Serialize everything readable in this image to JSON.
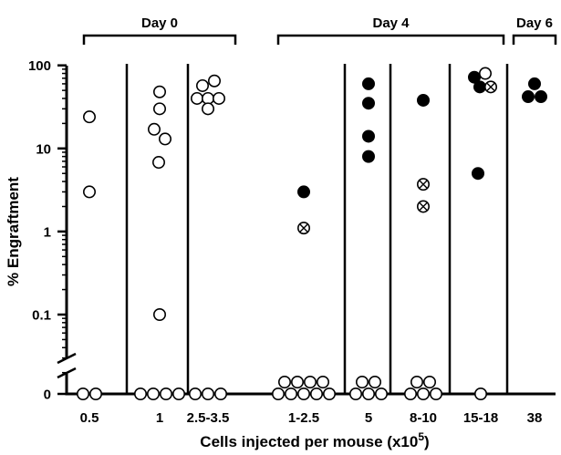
{
  "chart_data": {
    "type": "scatter",
    "title": "",
    "xlabel": "Cells injected per mouse (x10",
    "xlabel_sup": "5",
    "xlabel_end": ")",
    "ylabel": "% Engraftment",
    "yscale": "log",
    "ylim": [
      0.01,
      100
    ],
    "yticks": [
      {
        "value": 100,
        "label": "100"
      },
      {
        "value": 10,
        "label": "10"
      },
      {
        "value": 1,
        "label": "1"
      },
      {
        "value": 0.1,
        "label": "0.1"
      },
      {
        "value": 0,
        "label": "0"
      }
    ],
    "axis_break": true,
    "marker_legend": {
      "open": "open circle",
      "filled": "filled circle",
      "crossed": "crossed circle"
    },
    "groups": [
      {
        "label": "Day 0",
        "categories": [
          "0.5",
          "1",
          "2.5-3.5"
        ]
      },
      {
        "label": "Day 4",
        "categories": [
          "1-2.5",
          "5",
          "8-10",
          "15-18"
        ]
      },
      {
        "label": "Day 6",
        "categories": [
          "38"
        ]
      }
    ],
    "categories": [
      {
        "label": "0.5",
        "points": [
          {
            "y": 24,
            "marker": "open",
            "dx": 0
          },
          {
            "y": 3,
            "marker": "open",
            "dx": 0
          },
          {
            "y": 0,
            "marker": "open",
            "dx": -7
          },
          {
            "y": 0,
            "marker": "open",
            "dx": 7
          }
        ]
      },
      {
        "label": "1",
        "points": [
          {
            "y": 48,
            "marker": "open",
            "dx": 0
          },
          {
            "y": 30,
            "marker": "open",
            "dx": 0
          },
          {
            "y": 17,
            "marker": "open",
            "dx": -6
          },
          {
            "y": 13,
            "marker": "open",
            "dx": 6
          },
          {
            "y": 6.8,
            "marker": "open",
            "dx": -1
          },
          {
            "y": 0.1,
            "marker": "open",
            "dx": 0
          },
          {
            "y": 0,
            "marker": "open",
            "dx": -21
          },
          {
            "y": 0,
            "marker": "open",
            "dx": -7
          },
          {
            "y": 0,
            "marker": "open",
            "dx": 7
          },
          {
            "y": 0,
            "marker": "open",
            "dx": 21
          }
        ]
      },
      {
        "label": "2.5-3.5",
        "points": [
          {
            "y": 65,
            "marker": "open",
            "dx": 7
          },
          {
            "y": 57,
            "marker": "open",
            "dx": -6
          },
          {
            "y": 40,
            "marker": "open",
            "dx": -12
          },
          {
            "y": 40,
            "marker": "open",
            "dx": 0
          },
          {
            "y": 40,
            "marker": "open",
            "dx": 12
          },
          {
            "y": 30,
            "marker": "open",
            "dx": 0
          },
          {
            "y": 0,
            "marker": "open",
            "dx": -14
          },
          {
            "y": 0,
            "marker": "open",
            "dx": 0
          },
          {
            "y": 0,
            "marker": "open",
            "dx": 14
          }
        ]
      },
      {
        "label": "1-2.5",
        "points": [
          {
            "y": 3,
            "marker": "filled",
            "dx": 0
          },
          {
            "y": 1.1,
            "marker": "crossed",
            "dx": 0
          },
          {
            "y": 0,
            "marker": "open",
            "dx": -21,
            "row": 1
          },
          {
            "y": 0,
            "marker": "open",
            "dx": -7,
            "row": 1
          },
          {
            "y": 0,
            "marker": "open",
            "dx": 7,
            "row": 1
          },
          {
            "y": 0,
            "marker": "open",
            "dx": 21,
            "row": 1
          },
          {
            "y": 0,
            "marker": "open",
            "dx": -28
          },
          {
            "y": 0,
            "marker": "open",
            "dx": -14
          },
          {
            "y": 0,
            "marker": "open",
            "dx": 0
          },
          {
            "y": 0,
            "marker": "open",
            "dx": 14
          },
          {
            "y": 0,
            "marker": "open",
            "dx": 28
          }
        ]
      },
      {
        "label": "5",
        "points": [
          {
            "y": 60,
            "marker": "filled",
            "dx": 0
          },
          {
            "y": 35,
            "marker": "filled",
            "dx": 0
          },
          {
            "y": 14,
            "marker": "filled",
            "dx": 0
          },
          {
            "y": 8,
            "marker": "filled",
            "dx": 0
          },
          {
            "y": 0,
            "marker": "open",
            "dx": -7,
            "row": 1
          },
          {
            "y": 0,
            "marker": "open",
            "dx": 7,
            "row": 1
          },
          {
            "y": 0,
            "marker": "open",
            "dx": -14
          },
          {
            "y": 0,
            "marker": "open",
            "dx": 0
          },
          {
            "y": 0,
            "marker": "open",
            "dx": 14
          }
        ]
      },
      {
        "label": "8-10",
        "points": [
          {
            "y": 38,
            "marker": "filled",
            "dx": 0
          },
          {
            "y": 3.7,
            "marker": "crossed",
            "dx": 0
          },
          {
            "y": 2,
            "marker": "crossed",
            "dx": 0
          },
          {
            "y": 0,
            "marker": "open",
            "dx": -7,
            "row": 1
          },
          {
            "y": 0,
            "marker": "open",
            "dx": 7,
            "row": 1
          },
          {
            "y": 0,
            "marker": "open",
            "dx": -14
          },
          {
            "y": 0,
            "marker": "open",
            "dx": 0
          },
          {
            "y": 0,
            "marker": "open",
            "dx": 14
          }
        ]
      },
      {
        "label": "15-18",
        "points": [
          {
            "y": 80,
            "marker": "open",
            "dx": 5
          },
          {
            "y": 72,
            "marker": "filled",
            "dx": -7
          },
          {
            "y": 55,
            "marker": "filled",
            "dx": -1
          },
          {
            "y": 55,
            "marker": "crossed",
            "dx": 11
          },
          {
            "y": 5,
            "marker": "filled",
            "dx": -3
          },
          {
            "y": 0,
            "marker": "open",
            "dx": 0
          }
        ]
      },
      {
        "label": "38",
        "points": [
          {
            "y": 60,
            "marker": "filled",
            "dx": 0
          },
          {
            "y": 42,
            "marker": "filled",
            "dx": -7
          },
          {
            "y": 42,
            "marker": "filled",
            "dx": 7
          }
        ]
      }
    ]
  }
}
